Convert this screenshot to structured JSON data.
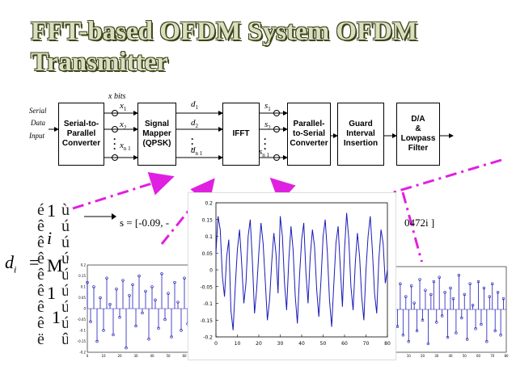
{
  "title": "FFT-based OFDM System OFDM Transmitter",
  "input_label": {
    "line1": "Serial",
    "line2": "Data",
    "line3": "Input"
  },
  "xbits_label": "x bits",
  "blocks": [
    {
      "id": "s2p",
      "line1": "Serial-to-",
      "line2": "Parallel",
      "line3": "Converter"
    },
    {
      "id": "mapper",
      "line1": "Signal",
      "line2": "Mapper",
      "line3": "(QPSK)"
    },
    {
      "id": "ifft",
      "line1": "IFFT",
      "line2": "",
      "line3": ""
    },
    {
      "id": "p2s",
      "line1": "Parallel-",
      "line2": "to-Serial",
      "line3": "Converter"
    },
    {
      "id": "guard",
      "line1": "Guard",
      "line2": "Interval",
      "line3": "Insertion"
    },
    {
      "id": "da",
      "line1": "D/A",
      "line2": "&",
      "line3": "Lowpass",
      "line4": "Filter"
    }
  ],
  "symbols": {
    "x1": "x",
    "x1_sub": "1",
    "x2": "x",
    "x2_sub": "2",
    "xn": "x",
    "xn_sub": "n 1",
    "d1": "d",
    "d1_sub": "1",
    "d2": "d",
    "d2_sub": "2",
    "dn": "d",
    "dn_sub": "n 1",
    "s1": "s",
    "s1_sub": "1",
    "s2": "s",
    "s2_sub": "2",
    "sn": "s",
    "sn_sub": "n 1"
  },
  "equation": {
    "lhs": "d",
    "lhs_sub": "i",
    "equals": "=",
    "vector": [
      "1",
      "i",
      "M",
      "1",
      "1"
    ],
    "s_expr": "s = [-0.09,   -",
    "s_tail": "0472i ]"
  },
  "big_plot": {
    "yticks": [
      "0.2",
      "0.15",
      "0.1",
      "0.05",
      "0",
      "-0.05",
      "-0.1",
      "-0.15",
      "-0.2"
    ],
    "xticks": [
      "0",
      "10",
      "20",
      "30",
      "40",
      "50",
      "60",
      "70",
      "80"
    ]
  },
  "small_plot_left": {
    "yticks": [
      "0.2",
      "0.15",
      "0.1",
      "0.05",
      "0",
      "-0.05",
      "-0.1",
      "-0.15",
      "-0.2"
    ],
    "xticks": [
      "0",
      "10",
      "20",
      "30",
      "40",
      "50",
      "60",
      "70"
    ]
  },
  "small_plot_right": {
    "xticks": [
      "0",
      "10",
      "20",
      "30",
      "40",
      "50",
      "60",
      "70",
      "80"
    ],
    "ytick_bottom": "-0.2"
  },
  "chart_data": [
    {
      "type": "line",
      "title": "",
      "xlabel": "",
      "ylabel": "",
      "xlim": [
        0,
        80
      ],
      "ylim": [
        -0.2,
        0.2
      ],
      "x": [
        0,
        1,
        2,
        3,
        4,
        5,
        6,
        7,
        8,
        9,
        10,
        11,
        12,
        13,
        14,
        15,
        16,
        17,
        18,
        19,
        20,
        21,
        22,
        23,
        24,
        25,
        26,
        27,
        28,
        29,
        30,
        31,
        32,
        33,
        34,
        35,
        36,
        37,
        38,
        39,
        40,
        41,
        42,
        43,
        44,
        45,
        46,
        47,
        48,
        49,
        50,
        51,
        52,
        53,
        54,
        55,
        56,
        57,
        58,
        59,
        60,
        61,
        62,
        63,
        64,
        65,
        66,
        67,
        68,
        69,
        70,
        71,
        72,
        73,
        74,
        75,
        76,
        77,
        78,
        79,
        80
      ],
      "values": [
        0.05,
        0.16,
        0.12,
        -0.02,
        -0.08,
        0.04,
        0.09,
        -0.12,
        -0.18,
        -0.05,
        0.06,
        0.12,
        0.02,
        -0.1,
        -0.04,
        0.1,
        0.15,
        0.03,
        -0.13,
        -0.06,
        0.05,
        0.14,
        0.08,
        -0.03,
        -0.15,
        -0.09,
        0.02,
        0.11,
        0.05,
        -0.07,
        0.16,
        0.1,
        -0.04,
        -0.12,
        0.03,
        0.13,
        0.06,
        -0.08,
        -0.16,
        -0.02,
        0.09,
        0.14,
        -0.01,
        -0.1,
        0.04,
        0.12,
        0.07,
        -0.06,
        -0.14,
        -0.03,
        0.1,
        0.15,
        0.05,
        -0.09,
        -0.17,
        -0.04,
        0.08,
        0.13,
        0.01,
        -0.11,
        0.06,
        0.17,
        0.09,
        -0.05,
        -0.12,
        0.02,
        0.11,
        0.04,
        -0.08,
        -0.15,
        0.0,
        0.1,
        0.16,
        0.06,
        -0.07,
        -0.13,
        0.03,
        0.12,
        0.08,
        -0.04,
        0.0
      ]
    },
    {
      "type": "scatter",
      "title": "stem",
      "xlim": [
        0,
        70
      ],
      "ylim": [
        -0.2,
        0.2
      ],
      "x": [
        0,
        2,
        4,
        6,
        8,
        10,
        12,
        14,
        16,
        18,
        20,
        22,
        24,
        26,
        28,
        30,
        32,
        34,
        36,
        38,
        40,
        42,
        44,
        46,
        48,
        50,
        52,
        54,
        56,
        58,
        60,
        62,
        64,
        66
      ],
      "values": [
        0.12,
        -0.06,
        0.1,
        -0.15,
        0.05,
        -0.1,
        0.14,
        0.02,
        -0.12,
        0.09,
        -0.04,
        0.13,
        -0.18,
        0.06,
        0.11,
        -0.08,
        0.15,
        -0.02,
        0.08,
        -0.14,
        0.1,
        0.04,
        -0.09,
        0.16,
        -0.05,
        0.07,
        -0.13,
        0.12,
        0.03,
        -0.1,
        0.14,
        -0.07,
        0.09,
        -0.16
      ]
    },
    {
      "type": "scatter",
      "title": "stem",
      "xlim": [
        0,
        80
      ],
      "ylim": [
        -0.2,
        0.2
      ],
      "x": [
        0,
        2,
        4,
        6,
        8,
        10,
        12,
        14,
        16,
        18,
        20,
        22,
        24,
        26,
        28,
        30,
        32,
        34,
        36,
        38,
        40,
        42,
        44,
        46,
        48,
        50,
        52,
        54,
        56,
        58,
        60,
        62,
        64,
        66,
        68,
        70,
        72,
        74,
        76,
        78
      ],
      "values": [
        0.1,
        -0.08,
        0.12,
        -0.12,
        0.06,
        -0.15,
        0.11,
        0.03,
        -0.1,
        0.14,
        -0.05,
        0.09,
        -0.16,
        0.07,
        0.13,
        -0.06,
        0.15,
        -0.03,
        0.08,
        -0.13,
        0.1,
        0.05,
        -0.11,
        0.16,
        -0.04,
        0.07,
        -0.14,
        0.12,
        0.02,
        -0.09,
        0.13,
        -0.07,
        0.1,
        -0.15,
        0.06,
        0.12,
        -0.1,
        0.08,
        -0.12,
        0.05
      ]
    }
  ]
}
